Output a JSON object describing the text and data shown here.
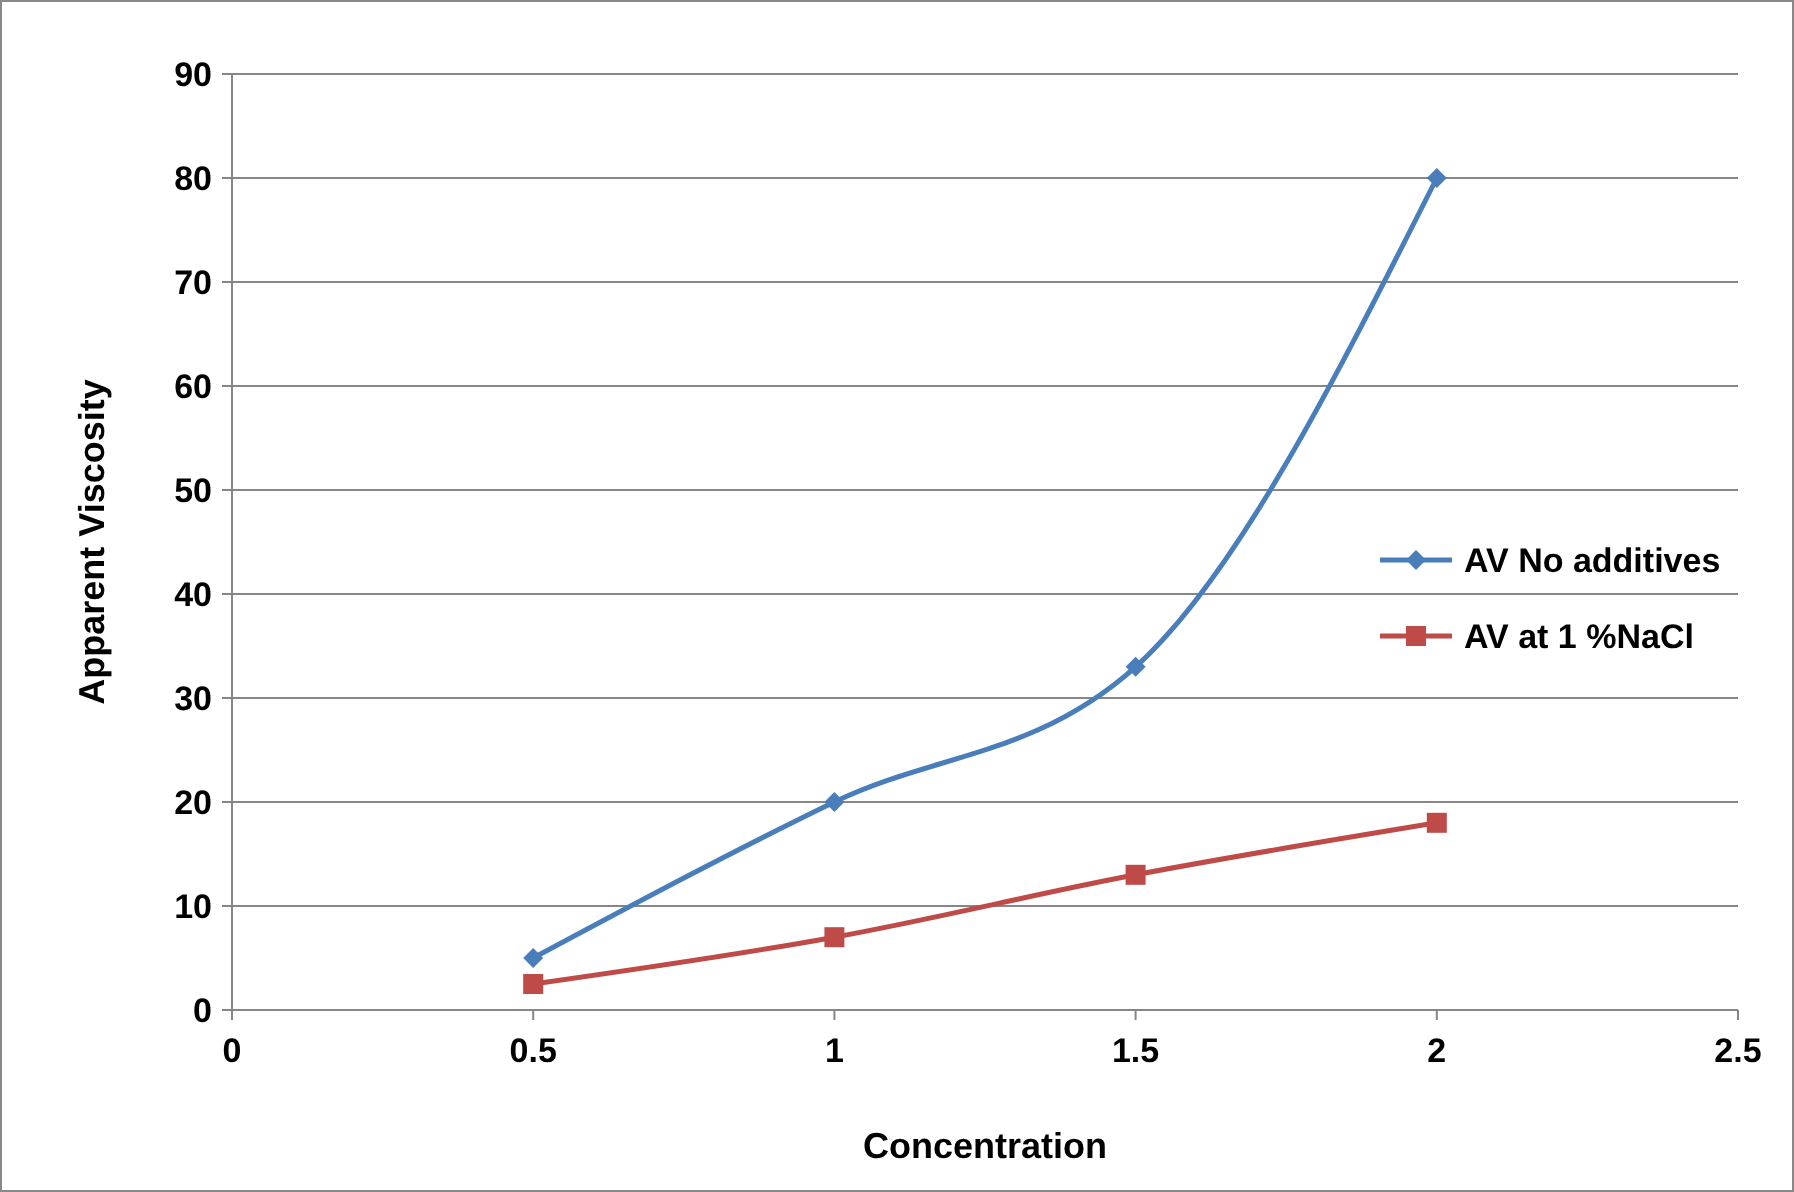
{
  "chart_data": {
    "type": "line",
    "xlabel": "Concentration",
    "ylabel": "Apparent Viscosity",
    "x": [
      0.5,
      1,
      1.5,
      2
    ],
    "series": [
      {
        "name": "AV No additives",
        "color": "#4a7ebb",
        "values": [
          5,
          20,
          33,
          80
        ],
        "marker": "diamond"
      },
      {
        "name": "AV at 1 %NaCl",
        "color": "#be4b48",
        "values": [
          2.5,
          7,
          13,
          18
        ],
        "marker": "square"
      }
    ],
    "xlim": [
      0,
      2.5
    ],
    "xticks": [
      0,
      0.5,
      1,
      1.5,
      2,
      2.5
    ],
    "ylim": [
      0,
      90
    ],
    "yticks": [
      0,
      10,
      20,
      30,
      40,
      50,
      60,
      70,
      80,
      90
    ],
    "grid": "y",
    "legend": "right",
    "line_style": "solid"
  }
}
